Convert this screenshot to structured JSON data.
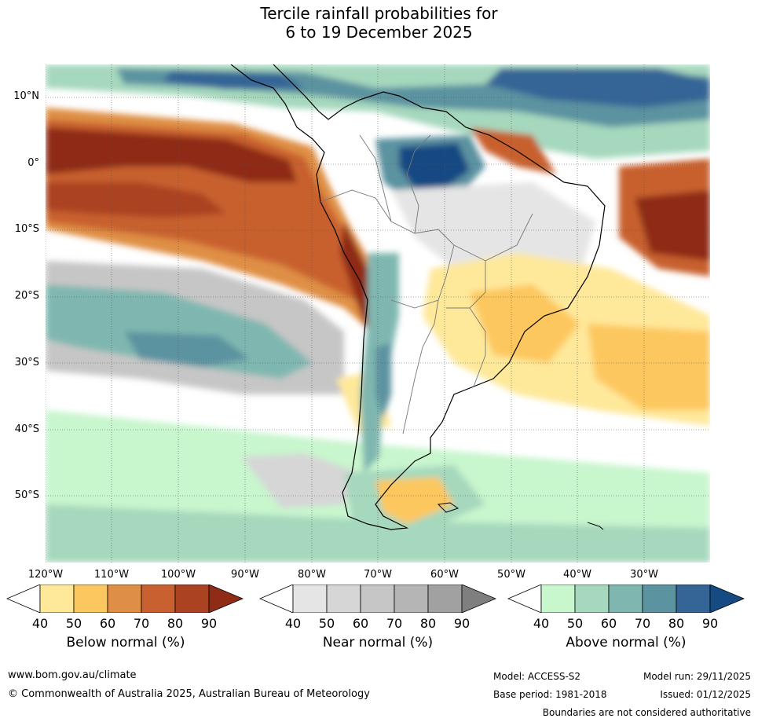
{
  "title": {
    "line1": "Tercile rainfall probabilities for",
    "line2": "6 to 19 December 2025"
  },
  "map": {
    "lat_labels": [
      "10°N",
      "0°",
      "10°S",
      "20°S",
      "30°S",
      "40°S",
      "50°S"
    ],
    "lon_labels": [
      "120°W",
      "110°W",
      "100°W",
      "90°W",
      "80°W",
      "70°W",
      "60°W",
      "50°W",
      "40°W",
      "30°W"
    ]
  },
  "colorbars": {
    "below": {
      "title": "Below normal (%)",
      "ticks": [
        "40",
        "50",
        "60",
        "70",
        "80",
        "90"
      ],
      "colors": [
        "#ffffff",
        "#fee89a",
        "#fdc75f",
        "#df8f45",
        "#c8602f",
        "#ab4222",
        "#8e2c18"
      ]
    },
    "near": {
      "title": "Near normal (%)",
      "ticks": [
        "40",
        "50",
        "60",
        "70",
        "80",
        "90"
      ],
      "colors": [
        "#ffffff",
        "#e5e5e5",
        "#d6d6d6",
        "#c6c6c6",
        "#b5b5b5",
        "#a1a1a1",
        "#7f7f7f"
      ]
    },
    "above": {
      "title": "Above normal (%)",
      "ticks": [
        "40",
        "50",
        "60",
        "70",
        "80",
        "90"
      ],
      "colors": [
        "#ffffff",
        "#c8f6cd",
        "#a6d8bd",
        "#7fb7b0",
        "#5c93a0",
        "#346596",
        "#154a83"
      ]
    }
  },
  "footer": {
    "website": "www.bom.gov.au/climate",
    "copyright": "© Commonwealth of Australia 2025, Australian Bureau of Meteorology",
    "model": "Model: ACCESS-S2",
    "base_period": "Base period: 1981-2018",
    "model_run": "Model run: 29/11/2025",
    "issued": "Issued: 01/12/2025",
    "disclaimer": "Boundaries are not considered authoritative"
  }
}
